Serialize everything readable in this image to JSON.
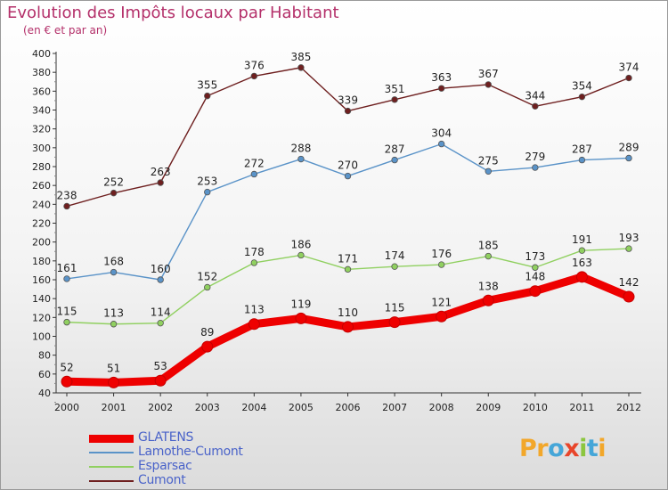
{
  "header": {
    "title": "Evolution des Impôts locaux par Habitant",
    "subtitle": "(en € et par an)"
  },
  "logo": {
    "text": "Proxiti",
    "letters": [
      {
        "ch": "P",
        "color": "#f2a72a"
      },
      {
        "ch": "r",
        "color": "#f2a72a"
      },
      {
        "ch": "o",
        "color": "#45a6d8"
      },
      {
        "ch": "x",
        "color": "#e8452a"
      },
      {
        "ch": "i",
        "color": "#8cc63f"
      },
      {
        "ch": "t",
        "color": "#45a6d8"
      },
      {
        "ch": "i",
        "color": "#f2a72a"
      }
    ]
  },
  "chart_data": {
    "type": "line",
    "title": "Evolution des Impôts locaux par Habitant",
    "subtitle": "(en € et par an)",
    "x": [
      "2000",
      "2001",
      "2002",
      "2003",
      "2004",
      "2005",
      "2006",
      "2007",
      "2008",
      "2009",
      "2010",
      "2011",
      "2012"
    ],
    "ylim": [
      40,
      400
    ],
    "yticks": [
      40,
      60,
      80,
      100,
      120,
      140,
      160,
      180,
      200,
      220,
      240,
      260,
      280,
      300,
      320,
      340,
      360,
      380,
      400
    ],
    "grid": false,
    "legend_position": "bottom-left",
    "series": [
      {
        "name": "GLATENS",
        "color": "#ee0000",
        "values": [
          52,
          51,
          53,
          89,
          113,
          119,
          110,
          115,
          121,
          138,
          148,
          163,
          142
        ]
      },
      {
        "name": "Lamothe-Cumont",
        "color": "#5a93c8",
        "values": [
          161,
          168,
          160,
          253,
          272,
          288,
          270,
          287,
          304,
          275,
          279,
          287,
          289
        ]
      },
      {
        "name": "Esparsac",
        "color": "#90d060",
        "values": [
          115,
          113,
          114,
          152,
          178,
          186,
          171,
          174,
          176,
          185,
          173,
          191,
          193
        ]
      },
      {
        "name": "Cumont",
        "color": "#6e1f1f",
        "values": [
          238,
          252,
          263,
          355,
          376,
          385,
          339,
          351,
          363,
          367,
          344,
          354,
          374
        ]
      }
    ]
  }
}
